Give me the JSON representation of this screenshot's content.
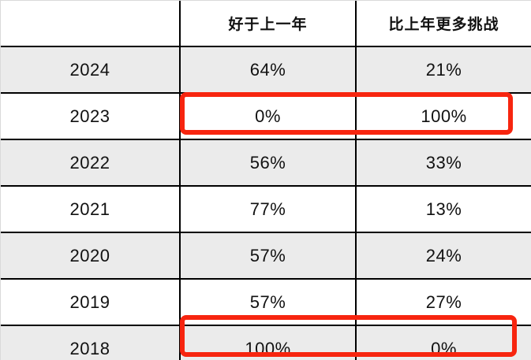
{
  "colors": {
    "highlight_red": "#f7250f",
    "row_alt_bg": "#ebebeb",
    "grid_black": "#000000",
    "outer_border_gray": "#d9d9d9"
  },
  "table": {
    "columns": [
      "",
      "好于上一年",
      "比上年更多挑战"
    ],
    "rows": [
      {
        "year": "2024",
        "better": "64%",
        "challenge": "21%",
        "highlighted": false
      },
      {
        "year": "2023",
        "better": "0%",
        "challenge": "100%",
        "highlighted": true
      },
      {
        "year": "2022",
        "better": "56%",
        "challenge": "33%",
        "highlighted": false
      },
      {
        "year": "2021",
        "better": "77%",
        "challenge": "13%",
        "highlighted": false
      },
      {
        "year": "2020",
        "better": "57%",
        "challenge": "24%",
        "highlighted": false
      },
      {
        "year": "2019",
        "better": "57%",
        "challenge": "27%",
        "highlighted": false
      },
      {
        "year": "2018",
        "better": "100%",
        "challenge": "0%",
        "highlighted": true
      }
    ]
  },
  "chart_data": {
    "type": "table",
    "columns": [
      "",
      "好于上一年",
      "比上年更多挑战"
    ],
    "rows": [
      [
        "2024",
        "64%",
        "21%"
      ],
      [
        "2023",
        "0%",
        "100%"
      ],
      [
        "2022",
        "56%",
        "33%"
      ],
      [
        "2021",
        "77%",
        "13%"
      ],
      [
        "2020",
        "57%",
        "24%"
      ],
      [
        "2019",
        "57%",
        "27%"
      ],
      [
        "2018",
        "100%",
        "0%"
      ]
    ],
    "highlighted_rows": [
      "2023",
      "2018"
    ],
    "layout": {
      "grid": true,
      "alternating_row_shading": true,
      "first_shaded_row": "2024"
    }
  }
}
